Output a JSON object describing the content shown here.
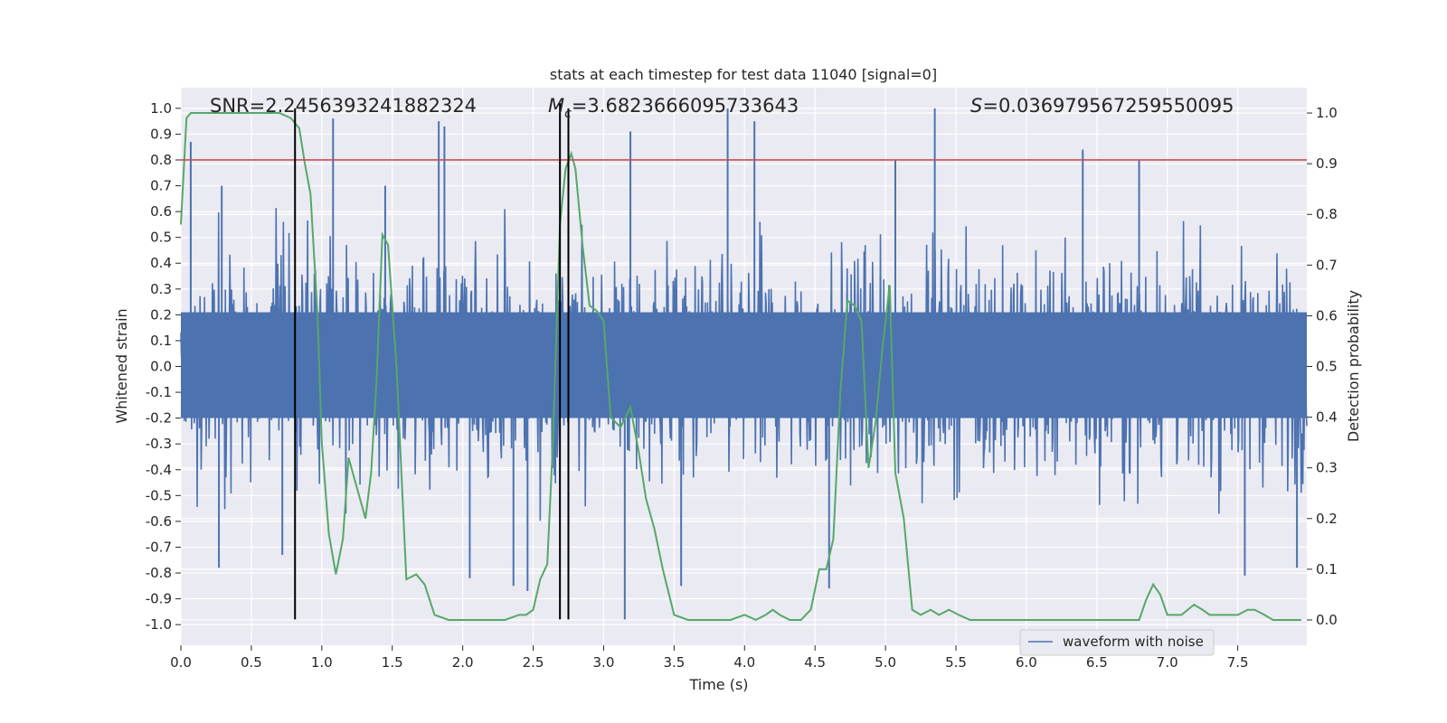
{
  "chart_data": {
    "type": "line",
    "title": "stats at each timestep for test data 11040 [signal=0]",
    "xlabel": "Time (s)",
    "ylabel": "Whitened strain",
    "y2label": "Detection probability",
    "xlim": [
      0.0,
      7.99
    ],
    "ylim": [
      -1.08,
      1.08
    ],
    "y2lim": [
      -0.05,
      1.05
    ],
    "x_ticks": [
      "0.0",
      "0.5",
      "1.0",
      "1.5",
      "2.0",
      "2.5",
      "3.0",
      "3.5",
      "4.0",
      "4.5",
      "5.0",
      "5.5",
      "6.0",
      "6.5",
      "7.0",
      "7.5"
    ],
    "y_ticks": [
      "1.0",
      "0.9",
      "0.8",
      "0.7",
      "0.6",
      "0.5",
      "0.4",
      "0.3",
      "0.2",
      "0.1",
      "0.0",
      "-0.1",
      "-0.2",
      "-0.3",
      "-0.4",
      "-0.5",
      "-0.6",
      "-0.7",
      "-0.8",
      "-0.9",
      "-1.0"
    ],
    "y2_ticks": [
      "1.0",
      "0.9",
      "0.8",
      "0.7",
      "0.6",
      "0.5",
      "0.4",
      "0.3",
      "0.2",
      "0.1",
      "0.0"
    ],
    "annotations": {
      "snr": "SNR=2.2456393241882324",
      "mc_symbol": "M",
      "mc_sub": "c",
      "mc_value": "=3.6823666095733643",
      "s_symbol": "S",
      "s_value": "=0.036979567259550095"
    },
    "threshold": {
      "y": 0.8,
      "color": "#c44e52"
    },
    "vertical_lines": [
      {
        "x": 0.81,
        "y_top": 1.0,
        "y_bottom": -0.98
      },
      {
        "x": 2.69,
        "y_top": 1.02,
        "y_bottom": -0.98
      },
      {
        "x": 2.75,
        "y_top": 1.0,
        "y_bottom": -0.98
      }
    ],
    "waveform": {
      "name": "waveform with noise",
      "color": "#4c72b0",
      "n_samples": 2000,
      "core_amplitude": 0.35,
      "spikes": [
        {
          "x": 0.07,
          "y": 0.87
        },
        {
          "x": 0.27,
          "y": -0.78
        },
        {
          "x": 0.29,
          "y": 0.7
        },
        {
          "x": 0.72,
          "y": -0.73
        },
        {
          "x": 1.08,
          "y": 0.96
        },
        {
          "x": 1.45,
          "y": 0.7
        },
        {
          "x": 1.83,
          "y": 0.95
        },
        {
          "x": 1.87,
          "y": 0.93
        },
        {
          "x": 2.05,
          "y": -0.82
        },
        {
          "x": 2.36,
          "y": -0.85
        },
        {
          "x": 2.46,
          "y": -0.87
        },
        {
          "x": 3.15,
          "y": -0.98
        },
        {
          "x": 3.19,
          "y": 0.91
        },
        {
          "x": 3.55,
          "y": -0.85
        },
        {
          "x": 3.88,
          "y": 1.0
        },
        {
          "x": 4.07,
          "y": 0.95
        },
        {
          "x": 4.6,
          "y": -0.86
        },
        {
          "x": 5.35,
          "y": 1.0
        },
        {
          "x": 5.07,
          "y": 0.8
        },
        {
          "x": 6.4,
          "y": 0.84
        },
        {
          "x": 6.8,
          "y": 0.8
        },
        {
          "x": 7.55,
          "y": -0.81
        },
        {
          "x": 7.92,
          "y": -0.78
        }
      ]
    },
    "probability": {
      "color": "#55a868",
      "x": [
        0.0,
        0.04,
        0.07,
        0.12,
        0.2,
        0.3,
        0.4,
        0.5,
        0.6,
        0.7,
        0.78,
        0.84,
        0.88,
        0.92,
        0.97,
        1.0,
        1.05,
        1.1,
        1.15,
        1.19,
        1.25,
        1.31,
        1.35,
        1.39,
        1.43,
        1.47,
        1.53,
        1.6,
        1.67,
        1.73,
        1.8,
        1.9,
        2.0,
        2.1,
        2.2,
        2.3,
        2.4,
        2.45,
        2.5,
        2.55,
        2.6,
        2.64,
        2.69,
        2.73,
        2.77,
        2.8,
        2.85,
        2.9,
        2.95,
        3.0,
        3.05,
        3.12,
        3.19,
        3.25,
        3.3,
        3.36,
        3.42,
        3.5,
        3.6,
        3.7,
        3.8,
        3.9,
        4.0,
        4.08,
        4.15,
        4.2,
        4.25,
        4.32,
        4.4,
        4.47,
        4.53,
        4.58,
        4.63,
        4.68,
        4.73,
        4.78,
        4.83,
        4.88,
        4.93,
        4.98,
        5.03,
        5.07,
        5.13,
        5.19,
        5.25,
        5.32,
        5.38,
        5.45,
        5.52,
        5.6,
        5.7,
        5.8,
        5.9,
        6.0,
        6.2,
        6.4,
        6.6,
        6.8,
        6.85,
        6.9,
        6.95,
        7.0,
        7.1,
        7.19,
        7.25,
        7.3,
        7.4,
        7.5,
        7.57,
        7.62,
        7.69,
        7.75,
        7.8,
        7.9,
        7.95
      ],
      "y": [
        0.78,
        0.99,
        1.0,
        1.0,
        1.0,
        1.0,
        1.0,
        1.0,
        1.0,
        1.0,
        0.99,
        0.97,
        0.9,
        0.84,
        0.6,
        0.35,
        0.17,
        0.09,
        0.16,
        0.32,
        0.26,
        0.2,
        0.29,
        0.48,
        0.76,
        0.74,
        0.5,
        0.08,
        0.09,
        0.07,
        0.01,
        0.0,
        0.0,
        0.0,
        0.0,
        0.0,
        0.01,
        0.01,
        0.02,
        0.08,
        0.11,
        0.35,
        0.78,
        0.89,
        0.92,
        0.89,
        0.74,
        0.62,
        0.61,
        0.59,
        0.4,
        0.38,
        0.42,
        0.33,
        0.24,
        0.18,
        0.1,
        0.01,
        0.0,
        0.0,
        0.0,
        0.0,
        0.01,
        0.0,
        0.01,
        0.02,
        0.01,
        0.0,
        0.0,
        0.02,
        0.1,
        0.1,
        0.16,
        0.45,
        0.63,
        0.62,
        0.59,
        0.3,
        0.39,
        0.54,
        0.66,
        0.29,
        0.2,
        0.02,
        0.01,
        0.02,
        0.01,
        0.02,
        0.01,
        0.0,
        0.0,
        0.0,
        0.0,
        0.0,
        0.0,
        0.0,
        0.0,
        0.0,
        0.04,
        0.07,
        0.05,
        0.01,
        0.01,
        0.03,
        0.02,
        0.01,
        0.01,
        0.01,
        0.02,
        0.02,
        0.01,
        0.0,
        0.0,
        0.0,
        0.0
      ]
    },
    "legend": {
      "label": "waveform with noise",
      "position": "lower-right"
    }
  }
}
